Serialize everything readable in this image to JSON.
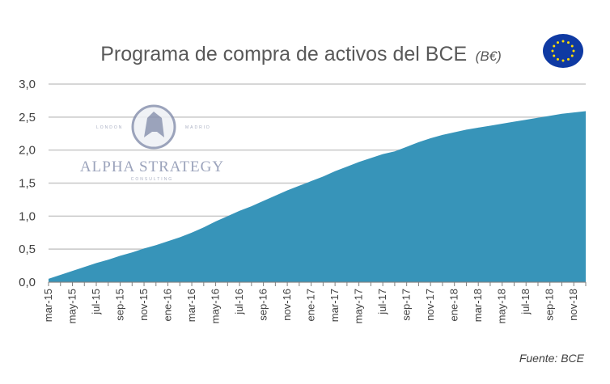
{
  "chart_data": {
    "type": "area",
    "title": "Programa de compra de activos del BCE",
    "title_unit": "(B€)",
    "source": "Fuente: BCE",
    "fill_color": "#3794b9",
    "grid_color": "#c8c8c8",
    "ylim": [
      0,
      3
    ],
    "y_ticks": [
      "0,0",
      "0,5",
      "1,0",
      "1,5",
      "2,0",
      "2,5",
      "3,0"
    ],
    "y_tick_values": [
      0,
      0.5,
      1.0,
      1.5,
      2.0,
      2.5,
      3.0
    ],
    "grid": true,
    "x_tick_labels": [
      "mar-15",
      "may-15",
      "jul-15",
      "sep-15",
      "nov-15",
      "ene-16",
      "mar-16",
      "may-16",
      "jul-16",
      "sep-16",
      "nov-16",
      "ene-17",
      "mar-17",
      "may-17",
      "jul-17",
      "sep-17",
      "nov-17",
      "ene-18",
      "mar-18",
      "may-18",
      "jul-18",
      "sep-18",
      "nov-18"
    ],
    "x": [
      "mar-15",
      "abr-15",
      "may-15",
      "jun-15",
      "jul-15",
      "ago-15",
      "sep-15",
      "oct-15",
      "nov-15",
      "dic-15",
      "ene-16",
      "feb-16",
      "mar-16",
      "abr-16",
      "may-16",
      "jun-16",
      "jul-16",
      "ago-16",
      "sep-16",
      "oct-16",
      "nov-16",
      "dic-16",
      "ene-17",
      "feb-17",
      "mar-17",
      "abr-17",
      "may-17",
      "jun-17",
      "jul-17",
      "ago-17",
      "sep-17",
      "oct-17",
      "nov-17",
      "dic-17",
      "ene-18",
      "feb-18",
      "mar-18",
      "abr-18",
      "may-18",
      "jun-18",
      "jul-18",
      "ago-18",
      "sep-18",
      "oct-18",
      "nov-18",
      "dic-18"
    ],
    "values": [
      0.05,
      0.11,
      0.17,
      0.23,
      0.29,
      0.34,
      0.4,
      0.45,
      0.51,
      0.56,
      0.62,
      0.68,
      0.75,
      0.83,
      0.92,
      1.0,
      1.08,
      1.15,
      1.23,
      1.31,
      1.39,
      1.46,
      1.53,
      1.6,
      1.68,
      1.75,
      1.82,
      1.88,
      1.94,
      1.98,
      2.05,
      2.12,
      2.18,
      2.23,
      2.27,
      2.31,
      2.34,
      2.37,
      2.4,
      2.43,
      2.46,
      2.49,
      2.52,
      2.55,
      2.57,
      2.59
    ]
  },
  "watermark": {
    "top_left": "LONDON",
    "top_right": "MADRID",
    "name": "ALPHA STRATEGY",
    "sub": "CONSULTING"
  },
  "eu_flag_icon": "eu-flag-icon"
}
